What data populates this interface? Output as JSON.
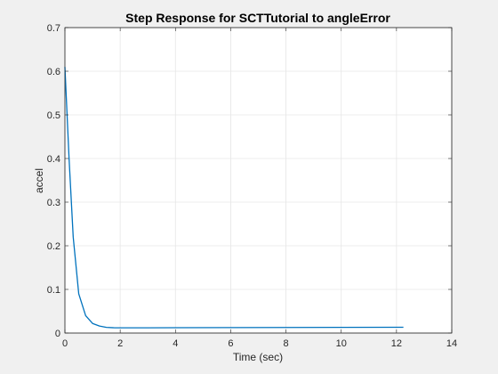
{
  "chart_data": {
    "type": "line",
    "title": "Step Response for SCTTutorial to angleError",
    "xlabel": "Time (sec)",
    "ylabel": "accel",
    "xlim": [
      0,
      14
    ],
    "ylim": [
      0,
      0.7
    ],
    "xticks": [
      0,
      2,
      4,
      6,
      8,
      10,
      12,
      14
    ],
    "yticks": [
      0,
      0.1,
      0.2,
      0.3,
      0.4,
      0.5,
      0.6,
      0.7
    ],
    "xtick_labels": [
      "0",
      "2",
      "4",
      "6",
      "8",
      "10",
      "12",
      "14"
    ],
    "ytick_labels": [
      "0",
      "0.1",
      "0.2",
      "0.3",
      "0.4",
      "0.5",
      "0.6",
      "0.7"
    ],
    "grid": true,
    "series": [
      {
        "color": "#0072bd",
        "x": [
          0,
          0.15,
          0.3,
          0.5,
          0.75,
          1.0,
          1.25,
          1.5,
          1.8,
          2.2,
          3,
          4,
          6,
          8,
          10,
          12.25
        ],
        "y": [
          0.61,
          0.4,
          0.22,
          0.09,
          0.04,
          0.022,
          0.016,
          0.013,
          0.012,
          0.012,
          0.012,
          0.0122,
          0.0125,
          0.0128,
          0.013,
          0.0132
        ]
      }
    ]
  }
}
